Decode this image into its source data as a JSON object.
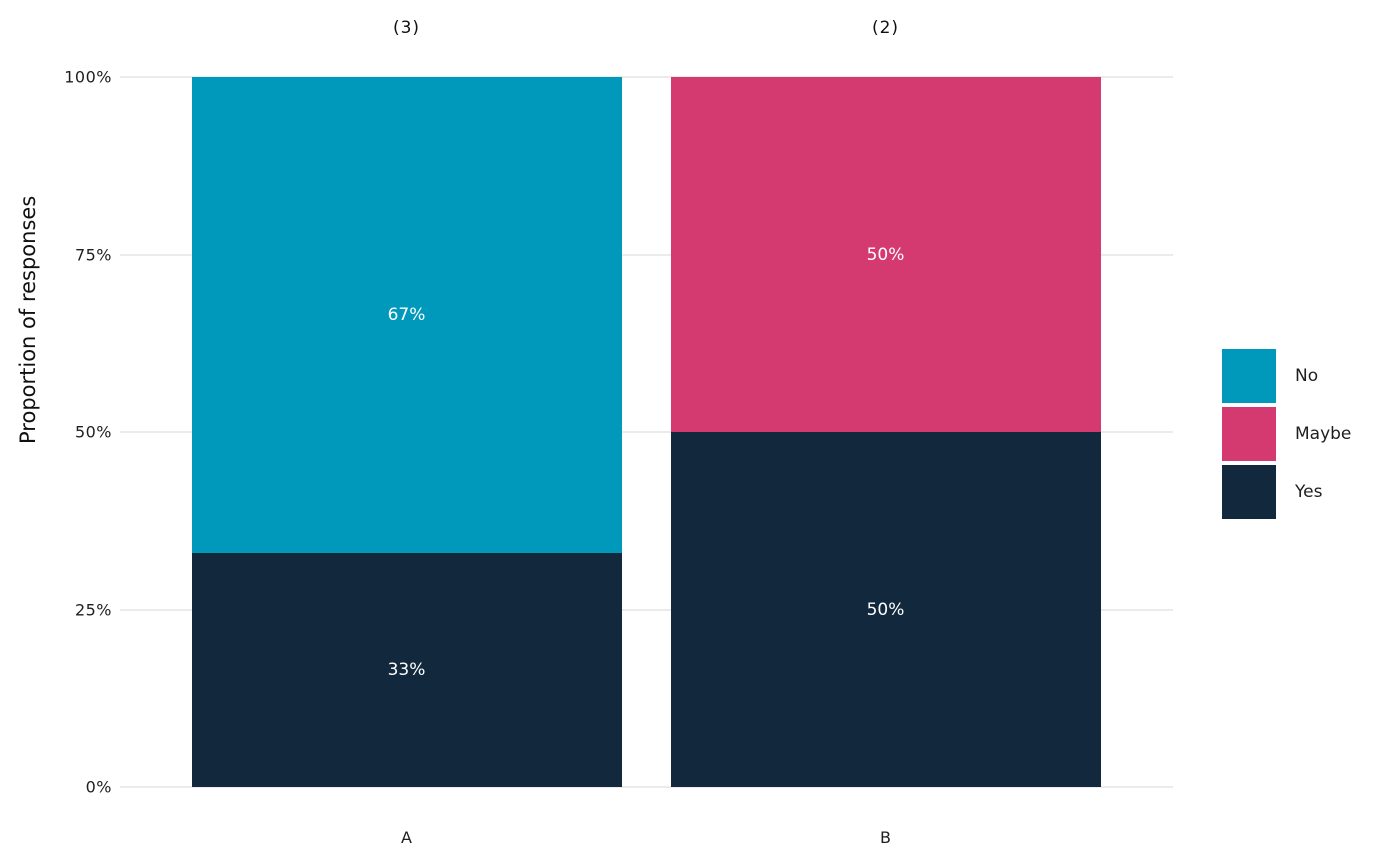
{
  "chart_data": {
    "type": "bar",
    "stacked": true,
    "percent": true,
    "title": "",
    "xlabel": "",
    "ylabel": "Proportion of responses",
    "categories": [
      "A",
      "B"
    ],
    "category_counts": [
      "(3)",
      "(2)"
    ],
    "series": [
      {
        "name": "No",
        "color": "#0099bc",
        "values": [
          67,
          0
        ]
      },
      {
        "name": "Maybe",
        "color": "#d43a6f",
        "values": [
          0,
          50
        ]
      },
      {
        "name": "Yes",
        "color": "#12293d",
        "values": [
          33,
          50
        ]
      }
    ],
    "bar_labels": [
      {
        "category": "A",
        "segment": "No",
        "text": "67%"
      },
      {
        "category": "A",
        "segment": "Yes",
        "text": "33%"
      },
      {
        "category": "B",
        "segment": "Maybe",
        "text": "50%"
      },
      {
        "category": "B",
        "segment": "Yes",
        "text": "50%"
      }
    ],
    "y_ticks": [
      {
        "value": 0,
        "label": "0%"
      },
      {
        "value": 25,
        "label": "25%"
      },
      {
        "value": 50,
        "label": "50%"
      },
      {
        "value": 75,
        "label": "75%"
      },
      {
        "value": 100,
        "label": "100%"
      }
    ],
    "ylim": [
      0,
      100
    ],
    "grid": true,
    "legend": {
      "position": "right",
      "entries": [
        {
          "label": "No",
          "color": "#0099bc"
        },
        {
          "label": "Maybe",
          "color": "#d43a6f"
        },
        {
          "label": "Yes",
          "color": "#12293d"
        }
      ]
    }
  },
  "colors": {
    "background": "#ffffff",
    "gridline": "#ebebeb",
    "axis_text": "#1f1f1f",
    "bar_label_text": "#ffffff"
  }
}
